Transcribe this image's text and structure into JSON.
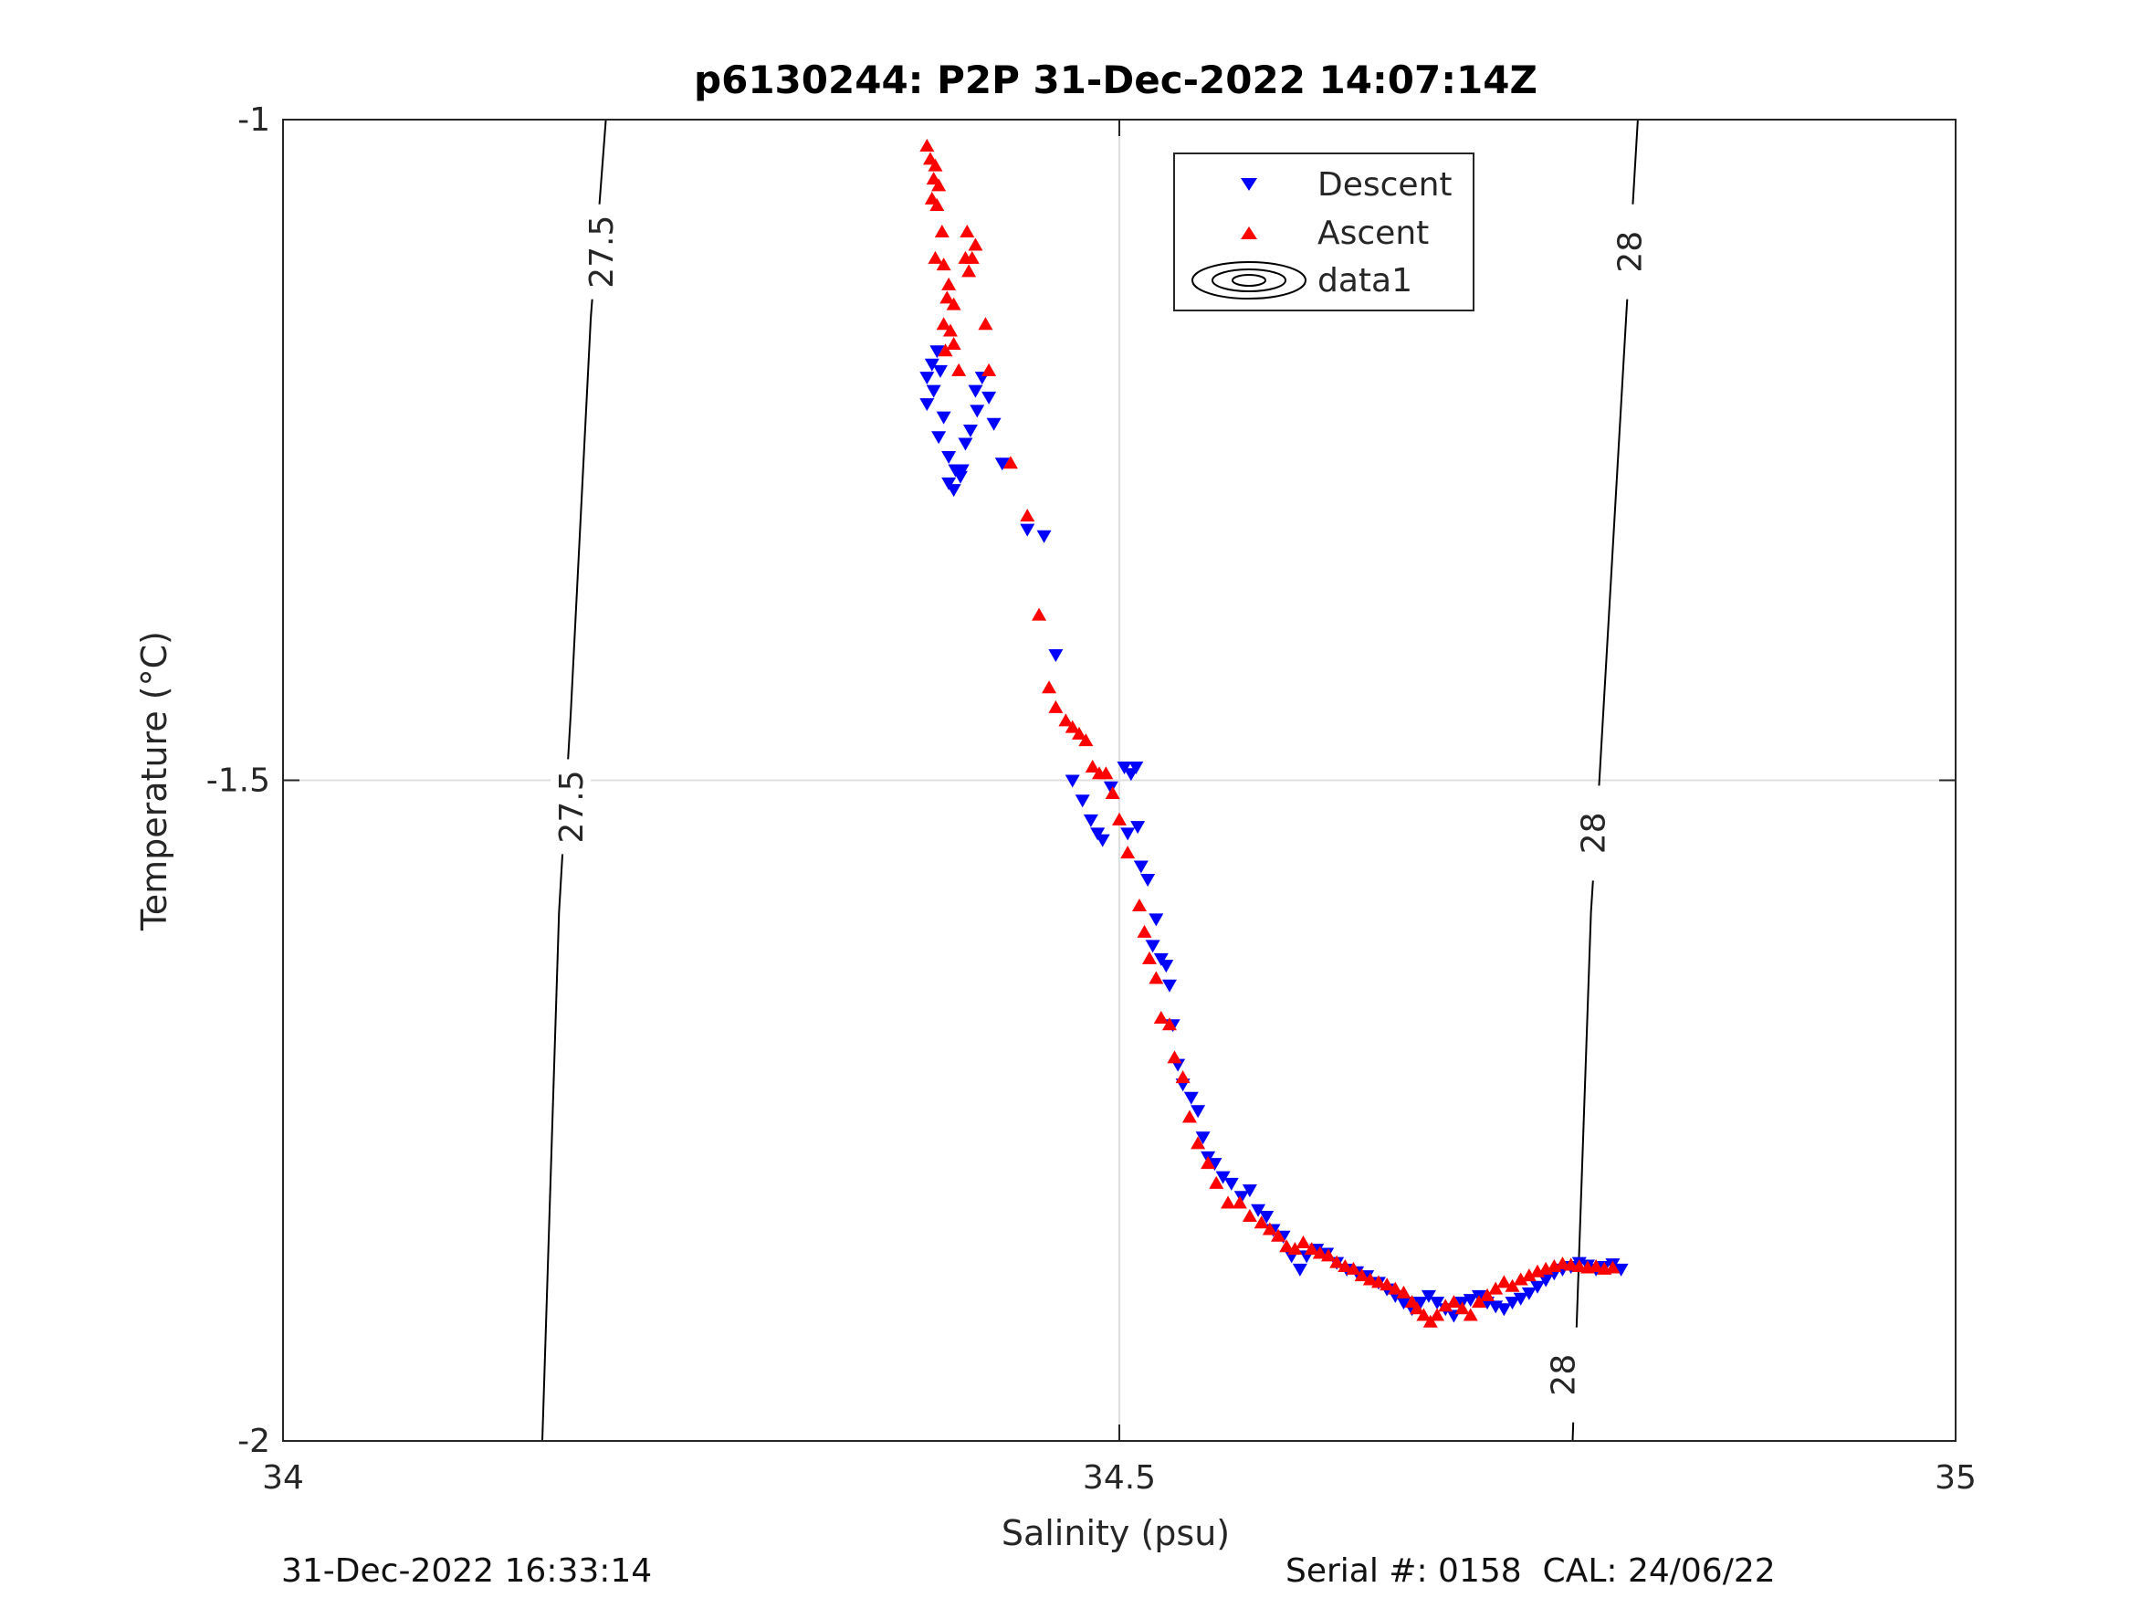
{
  "chart_data": {
    "type": "scatter",
    "title": "p6130244: P2P 31-Dec-2022 14:07:14Z",
    "xlabel": "Salinity (psu)",
    "ylabel": "Temperature (°C)",
    "xlim": [
      34,
      35
    ],
    "ylim": [
      -2,
      -1
    ],
    "xticks": [
      "34",
      "34.5",
      "35"
    ],
    "yticks": [
      "-1",
      "-1.5",
      "-2"
    ],
    "grid": true,
    "legend_position": "top-right",
    "legend": [
      "Descent",
      "Ascent",
      "data1"
    ],
    "series": [
      {
        "name": "Descent",
        "marker": "triangle-down",
        "color": "#0000ff",
        "points": [
          [
            34.385,
            -1.195
          ],
          [
            34.388,
            -1.185
          ],
          [
            34.391,
            -1.175
          ],
          [
            34.389,
            -1.205
          ],
          [
            34.393,
            -1.19
          ],
          [
            34.385,
            -1.215
          ],
          [
            34.395,
            -1.225
          ],
          [
            34.392,
            -1.24
          ],
          [
            34.398,
            -1.255
          ],
          [
            34.402,
            -1.265
          ],
          [
            34.405,
            -1.27
          ],
          [
            34.398,
            -1.275
          ],
          [
            34.401,
            -1.28
          ],
          [
            34.406,
            -1.265
          ],
          [
            34.408,
            -1.245
          ],
          [
            34.411,
            -1.235
          ],
          [
            34.415,
            -1.22
          ],
          [
            34.414,
            -1.205
          ],
          [
            34.418,
            -1.195
          ],
          [
            34.422,
            -1.21
          ],
          [
            34.425,
            -1.23
          ],
          [
            34.43,
            -1.26
          ],
          [
            34.445,
            -1.31
          ],
          [
            34.455,
            -1.315
          ],
          [
            34.462,
            -1.405
          ],
          [
            34.472,
            -1.5
          ],
          [
            34.478,
            -1.515
          ],
          [
            34.483,
            -1.53
          ],
          [
            34.487,
            -1.54
          ],
          [
            34.49,
            -1.545
          ],
          [
            34.495,
            -1.505
          ],
          [
            34.503,
            -1.49
          ],
          [
            34.507,
            -1.495
          ],
          [
            34.51,
            -1.49
          ],
          [
            34.505,
            -1.54
          ],
          [
            34.511,
            -1.535
          ],
          [
            34.513,
            -1.565
          ],
          [
            34.517,
            -1.575
          ],
          [
            34.52,
            -1.625
          ],
          [
            34.522,
            -1.605
          ],
          [
            34.525,
            -1.635
          ],
          [
            34.528,
            -1.64
          ],
          [
            34.53,
            -1.655
          ],
          [
            34.532,
            -1.685
          ],
          [
            34.535,
            -1.715
          ],
          [
            34.538,
            -1.73
          ],
          [
            34.543,
            -1.74
          ],
          [
            34.547,
            -1.75
          ],
          [
            34.55,
            -1.77
          ],
          [
            34.553,
            -1.785
          ],
          [
            34.557,
            -1.79
          ],
          [
            34.562,
            -1.8
          ],
          [
            34.567,
            -1.805
          ],
          [
            34.573,
            -1.815
          ],
          [
            34.578,
            -1.81
          ],
          [
            34.583,
            -1.825
          ],
          [
            34.588,
            -1.83
          ],
          [
            34.592,
            -1.84
          ],
          [
            34.598,
            -1.845
          ],
          [
            34.603,
            -1.86
          ],
          [
            34.608,
            -1.87
          ],
          [
            34.612,
            -1.86
          ],
          [
            34.618,
            -1.855
          ],
          [
            34.624,
            -1.858
          ],
          [
            34.63,
            -1.865
          ],
          [
            34.636,
            -1.87
          ],
          [
            34.642,
            -1.872
          ],
          [
            34.648,
            -1.875
          ],
          [
            34.655,
            -1.88
          ],
          [
            34.66,
            -1.885
          ],
          [
            34.665,
            -1.89
          ],
          [
            34.67,
            -1.895
          ],
          [
            34.675,
            -1.9
          ],
          [
            34.68,
            -1.895
          ],
          [
            34.685,
            -1.89
          ],
          [
            34.69,
            -1.895
          ],
          [
            34.695,
            -1.9
          ],
          [
            34.7,
            -1.905
          ],
          [
            34.705,
            -1.895
          ],
          [
            34.71,
            -1.893
          ],
          [
            34.715,
            -1.89
          ],
          [
            34.72,
            -1.895
          ],
          [
            34.725,
            -1.898
          ],
          [
            34.73,
            -1.9
          ],
          [
            34.735,
            -1.895
          ],
          [
            34.74,
            -1.892
          ],
          [
            34.745,
            -1.888
          ],
          [
            34.75,
            -1.883
          ],
          [
            34.755,
            -1.878
          ],
          [
            34.76,
            -1.873
          ],
          [
            34.765,
            -1.87
          ],
          [
            34.77,
            -1.868
          ],
          [
            34.775,
            -1.865
          ],
          [
            34.78,
            -1.867
          ],
          [
            34.785,
            -1.87
          ],
          [
            34.79,
            -1.868
          ],
          [
            34.795,
            -1.866
          ],
          [
            34.8,
            -1.87
          ]
        ]
      },
      {
        "name": "Ascent",
        "marker": "triangle-up",
        "color": "#ff0000",
        "points": [
          [
            34.385,
            -1.02
          ],
          [
            34.387,
            -1.03
          ],
          [
            34.39,
            -1.035
          ],
          [
            34.389,
            -1.045
          ],
          [
            34.392,
            -1.05
          ],
          [
            34.388,
            -1.06
          ],
          [
            34.391,
            -1.065
          ],
          [
            34.394,
            -1.085
          ],
          [
            34.39,
            -1.105
          ],
          [
            34.395,
            -1.11
          ],
          [
            34.398,
            -1.125
          ],
          [
            34.397,
            -1.135
          ],
          [
            34.401,
            -1.14
          ],
          [
            34.395,
            -1.155
          ],
          [
            34.399,
            -1.16
          ],
          [
            34.401,
            -1.17
          ],
          [
            34.396,
            -1.175
          ],
          [
            34.404,
            -1.19
          ],
          [
            34.41,
            -1.115
          ],
          [
            34.414,
            -1.095
          ],
          [
            34.408,
            -1.105
          ],
          [
            34.412,
            -1.105
          ],
          [
            34.409,
            -1.085
          ],
          [
            34.42,
            -1.155
          ],
          [
            34.422,
            -1.19
          ],
          [
            34.435,
            -1.26
          ],
          [
            34.445,
            -1.3
          ],
          [
            34.452,
            -1.375
          ],
          [
            34.458,
            -1.43
          ],
          [
            34.462,
            -1.445
          ],
          [
            34.468,
            -1.455
          ],
          [
            34.472,
            -1.46
          ],
          [
            34.476,
            -1.465
          ],
          [
            34.48,
            -1.47
          ],
          [
            34.484,
            -1.49
          ],
          [
            34.488,
            -1.495
          ],
          [
            34.492,
            -1.495
          ],
          [
            34.496,
            -1.51
          ],
          [
            34.5,
            -1.53
          ],
          [
            34.505,
            -1.555
          ],
          [
            34.512,
            -1.595
          ],
          [
            34.515,
            -1.615
          ],
          [
            34.518,
            -1.635
          ],
          [
            34.522,
            -1.65
          ],
          [
            34.525,
            -1.68
          ],
          [
            34.53,
            -1.685
          ],
          [
            34.533,
            -1.71
          ],
          [
            34.538,
            -1.725
          ],
          [
            34.542,
            -1.755
          ],
          [
            34.547,
            -1.775
          ],
          [
            34.553,
            -1.79
          ],
          [
            34.558,
            -1.805
          ],
          [
            34.565,
            -1.82
          ],
          [
            34.572,
            -1.82
          ],
          [
            34.578,
            -1.83
          ],
          [
            34.585,
            -1.835
          ],
          [
            34.59,
            -1.84
          ],
          [
            34.595,
            -1.845
          ],
          [
            34.6,
            -1.853
          ],
          [
            34.605,
            -1.855
          ],
          [
            34.61,
            -1.85
          ],
          [
            34.615,
            -1.855
          ],
          [
            34.62,
            -1.858
          ],
          [
            34.625,
            -1.86
          ],
          [
            34.63,
            -1.865
          ],
          [
            34.635,
            -1.868
          ],
          [
            34.64,
            -1.87
          ],
          [
            34.645,
            -1.875
          ],
          [
            34.65,
            -1.878
          ],
          [
            34.655,
            -1.88
          ],
          [
            34.66,
            -1.882
          ],
          [
            34.665,
            -1.885
          ],
          [
            34.67,
            -1.888
          ],
          [
            34.675,
            -1.895
          ],
          [
            34.678,
            -1.9
          ],
          [
            34.682,
            -1.905
          ],
          [
            34.686,
            -1.91
          ],
          [
            34.69,
            -1.905
          ],
          [
            34.695,
            -1.898
          ],
          [
            34.7,
            -1.895
          ],
          [
            34.705,
            -1.9
          ],
          [
            34.71,
            -1.905
          ],
          [
            34.715,
            -1.895
          ],
          [
            34.72,
            -1.89
          ],
          [
            34.725,
            -1.885
          ],
          [
            34.73,
            -1.88
          ],
          [
            34.735,
            -1.883
          ],
          [
            34.74,
            -1.878
          ],
          [
            34.745,
            -1.875
          ],
          [
            34.75,
            -1.872
          ],
          [
            34.755,
            -1.87
          ],
          [
            34.76,
            -1.868
          ],
          [
            34.765,
            -1.866
          ],
          [
            34.77,
            -1.867
          ],
          [
            34.775,
            -1.868
          ],
          [
            34.78,
            -1.869
          ],
          [
            34.785,
            -1.868
          ],
          [
            34.79,
            -1.87
          ],
          [
            34.795,
            -1.869
          ]
        ]
      }
    ],
    "contours": [
      {
        "label": "27.5",
        "points": [
          [
            34.193,
            -1.0
          ],
          [
            34.184,
            -1.15
          ],
          [
            34.172,
            -1.45
          ],
          [
            34.165,
            -1.6
          ],
          [
            34.155,
            -2.0
          ]
        ],
        "label_positions": [
          [
            34.19,
            -1.1
          ],
          [
            34.172,
            -1.52
          ]
        ]
      },
      {
        "label": "28",
        "points": [
          [
            34.81,
            -1.0
          ],
          [
            34.803,
            -1.15
          ],
          [
            34.787,
            -1.5
          ],
          [
            34.782,
            -1.6
          ],
          [
            34.771,
            -2.0
          ]
        ],
        "label_positions": [
          [
            34.805,
            -1.1
          ],
          [
            34.783,
            -1.54
          ],
          [
            34.765,
            -1.95
          ]
        ]
      }
    ]
  },
  "footer": {
    "timestamp": "31-Dec-2022 16:33:14",
    "serial": "Serial #: 0158  CAL: 24/06/22"
  }
}
